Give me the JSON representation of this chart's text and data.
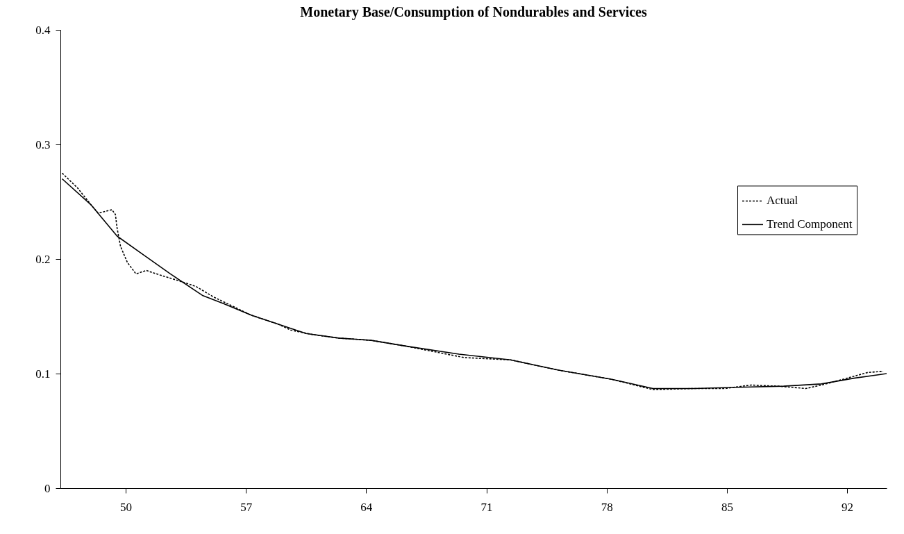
{
  "chart_data": {
    "type": "line",
    "title": "Monetary Base/Consumption of Nondurables and Services",
    "xlim": [
      46.2,
      94.3
    ],
    "xticks": [
      50,
      57,
      64,
      71,
      78,
      85,
      92
    ],
    "ylim": [
      0,
      0.4
    ],
    "yticks": [
      0,
      0.1,
      0.2,
      0.3,
      0.4
    ],
    "grid": false,
    "legend": "right",
    "marker": "none",
    "series": [
      {
        "name": "Actual",
        "color": "#000000",
        "line_style": "dashed",
        "x": [
          46.3,
          47.2,
          48.0,
          48.4,
          49.2,
          49.4,
          49.5,
          49.7,
          50.1,
          50.6,
          51.2,
          52.0,
          53.1,
          54.1,
          55.1,
          57.3,
          58.9,
          59.6,
          60.9,
          62.4,
          64.3,
          66.3,
          69.7,
          72.4,
          75.2,
          78.3,
          80.7,
          83.1,
          84.9,
          86.4,
          88.0,
          89.6,
          90.5,
          92.0,
          93.2,
          94.1
        ],
        "values": [
          0.275,
          0.262,
          0.247,
          0.24,
          0.243,
          0.239,
          0.227,
          0.211,
          0.197,
          0.187,
          0.19,
          0.186,
          0.181,
          0.176,
          0.167,
          0.151,
          0.143,
          0.138,
          0.134,
          0.131,
          0.129,
          0.124,
          0.114,
          0.112,
          0.103,
          0.095,
          0.086,
          0.087,
          0.087,
          0.09,
          0.089,
          0.087,
          0.09,
          0.096,
          0.101,
          0.102
        ]
      },
      {
        "name": "Trend Component",
        "color": "#000000",
        "line_style": "solid",
        "x": [
          46.3,
          48.0,
          49.5,
          51.1,
          52.6,
          54.5,
          55.7,
          57.3,
          58.9,
          60.5,
          62.4,
          64.3,
          66.3,
          69.4,
          72.4,
          75.2,
          78.3,
          80.7,
          83.1,
          85.6,
          88.3,
          90.5,
          92.4,
          94.3
        ],
        "values": [
          0.27,
          0.247,
          0.22,
          0.203,
          0.187,
          0.168,
          0.161,
          0.151,
          0.143,
          0.135,
          0.131,
          0.129,
          0.124,
          0.117,
          0.112,
          0.103,
          0.095,
          0.087,
          0.087,
          0.088,
          0.089,
          0.091,
          0.096,
          0.1
        ]
      }
    ]
  }
}
